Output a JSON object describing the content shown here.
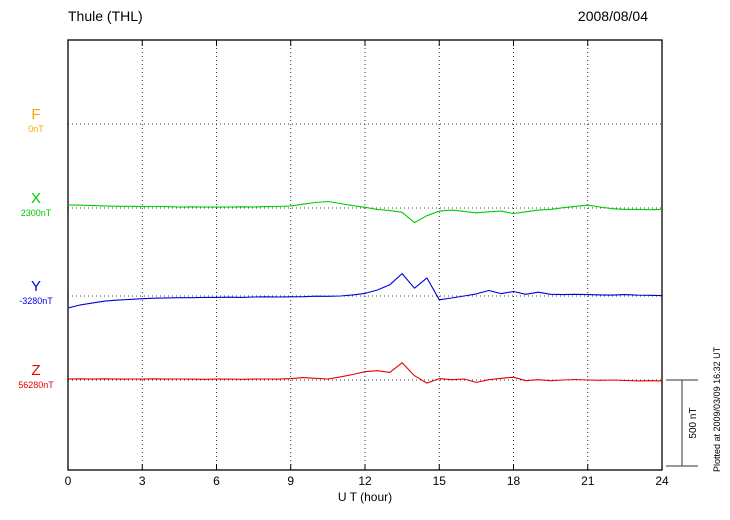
{
  "plotted_at": "Plotted at 2009/03/09 16:32 UT",
  "chart_data": {
    "type": "line",
    "title": "Thule (THL)",
    "date": "2008/08/04",
    "xlabel": "U T (hour)",
    "x_range": [
      0,
      24
    ],
    "x_ticks": [
      0,
      3,
      6,
      9,
      12,
      15,
      18,
      21,
      24
    ],
    "sample_step_hours": 0.5,
    "unit": "nT",
    "grid": "dotted",
    "scale_bar": {
      "label": "500 nT",
      "nT": 500
    },
    "series": [
      {
        "name": "F",
        "baseline_label": "0nT",
        "color": "#FFA500",
        "values": []
      },
      {
        "name": "X",
        "baseline_label": "2300nT",
        "color": "#00CC00",
        "values": [
          18,
          16,
          14,
          12,
          10,
          10,
          8,
          9,
          8,
          6,
          7,
          6,
          5,
          6,
          7,
          6,
          8,
          9,
          12,
          22,
          32,
          38,
          26,
          14,
          4,
          -8,
          -15,
          -25,
          -85,
          -45,
          -18,
          -12,
          -20,
          -28,
          -22,
          -18,
          -32,
          -22,
          -12,
          -8,
          2,
          10,
          16,
          6,
          -4,
          -8,
          -8,
          -10,
          -8
        ]
      },
      {
        "name": "Y",
        "baseline_label": "-3280nT",
        "color": "#0000DD",
        "values": [
          -70,
          -52,
          -40,
          -30,
          -24,
          -20,
          -16,
          -13,
          -11,
          -10,
          -10,
          -8,
          -8,
          -7,
          -8,
          -6,
          -5,
          -6,
          -5,
          -4,
          -1,
          -2,
          0,
          6,
          15,
          35,
          65,
          130,
          45,
          105,
          -22,
          -12,
          0,
          12,
          32,
          14,
          26,
          10,
          22,
          10,
          8,
          10,
          8,
          6,
          5,
          8,
          5,
          4,
          2
        ]
      },
      {
        "name": "Z",
        "baseline_label": "56280nT",
        "color": "#E60000",
        "values": [
          5,
          7,
          5,
          7,
          5,
          6,
          5,
          7,
          5,
          6,
          5,
          4,
          5,
          6,
          4,
          5,
          6,
          5,
          8,
          14,
          10,
          6,
          18,
          32,
          48,
          54,
          44,
          100,
          25,
          -18,
          8,
          2,
          6,
          -14,
          2,
          10,
          16,
          -4,
          2,
          -4,
          0,
          3,
          0,
          -2,
          0,
          -3,
          -5,
          -4,
          -5
        ]
      }
    ]
  }
}
